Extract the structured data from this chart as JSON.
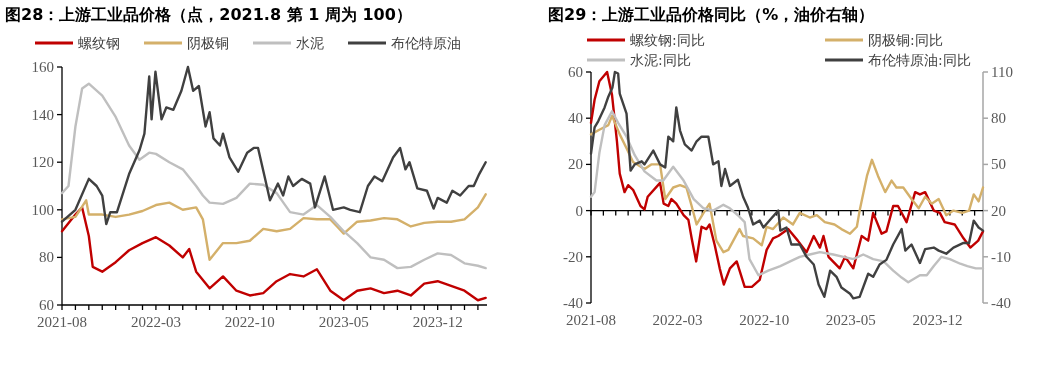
{
  "chart_data": [
    {
      "type": "line",
      "title": "图28：上游工业品价格（点，2021.8 第 1 周为 100）",
      "legend": "top",
      "xlim": [
        "2021-08-01",
        "2024-03-22"
      ],
      "xticks": [
        "2021-08",
        {
          "value": "2021-09",
          "label": null
        },
        {
          "value": "2021-10",
          "label": null
        },
        {
          "value": "2021-11",
          "label": null
        },
        {
          "value": "2021-12",
          "label": null
        },
        {
          "value": "2022-01",
          "label": null
        },
        {
          "value": "2022-02",
          "label": null
        },
        "2022-03",
        {
          "value": "2022-04",
          "label": null
        },
        {
          "value": "2022-05",
          "label": null
        },
        {
          "value": "2022-06",
          "label": null
        },
        {
          "value": "2022-07",
          "label": null
        },
        {
          "value": "2022-08",
          "label": null
        },
        {
          "value": "2022-09",
          "label": null
        },
        "2022-10",
        {
          "value": "2022-11",
          "label": null
        },
        {
          "value": "2022-12",
          "label": null
        },
        {
          "value": "2023-01",
          "label": null
        },
        {
          "value": "2023-02",
          "label": null
        },
        {
          "value": "2023-03",
          "label": null
        },
        {
          "value": "2023-04",
          "label": null
        },
        "2023-05",
        {
          "value": "2023-06",
          "label": null
        },
        {
          "value": "2023-07",
          "label": null
        },
        {
          "value": "2023-08",
          "label": null
        },
        {
          "value": "2023-09",
          "label": null
        },
        {
          "value": "2023-10",
          "label": null
        },
        {
          "value": "2023-11",
          "label": null
        },
        "2023-12",
        {
          "value": "2024-01",
          "label": null
        },
        {
          "value": "2024-02",
          "label": null
        },
        {
          "value": "2024-03",
          "label": null
        }
      ],
      "ylim": [
        60,
        160
      ],
      "yticks": [
        60,
        80,
        100,
        120,
        140,
        160
      ],
      "series": [
        {
          "name": "螺纹钢",
          "color": "#c00000",
          "x": [
            "2021-08-01",
            "2021-09-01",
            "2021-09-16",
            "2021-10-01",
            "2021-10-10",
            "2021-11-01",
            "2021-12-01",
            "2022-01-01",
            "2022-02-01",
            "2022-03-01",
            "2022-04-01",
            "2022-05-01",
            "2022-05-16",
            "2022-06-01",
            "2022-07-01",
            "2022-08-01",
            "2022-09-01",
            "2022-10-01",
            "2022-11-01",
            "2022-12-01",
            "2023-01-01",
            "2023-02-01",
            "2023-03-01",
            "2023-04-01",
            "2023-05-01",
            "2023-06-01",
            "2023-07-01",
            "2023-08-01",
            "2023-09-01",
            "2023-10-01",
            "2023-11-01",
            "2023-12-01",
            "2024-01-01",
            "2024-02-01",
            "2024-03-01",
            "2024-03-19"
          ],
          "values": [
            91,
            98,
            101,
            89,
            76,
            74,
            78,
            83,
            86,
            88.5,
            85,
            80,
            83.5,
            74,
            67,
            72,
            66,
            64,
            65,
            70,
            73,
            72,
            75,
            66,
            62,
            66,
            67,
            65,
            66,
            64,
            69,
            70,
            68,
            66,
            62,
            63
          ]
        },
        {
          "name": "阴极铜",
          "color": "#d4b06a",
          "x": [
            "2021-08-01",
            "2021-09-01",
            "2021-09-25",
            "2021-10-01",
            "2021-11-01",
            "2021-12-01",
            "2022-01-01",
            "2022-02-01",
            "2022-03-01",
            "2022-04-01",
            "2022-05-01",
            "2022-06-01",
            "2022-06-16",
            "2022-07-01",
            "2022-08-01",
            "2022-09-01",
            "2022-10-01",
            "2022-11-01",
            "2022-12-01",
            "2023-01-01",
            "2023-02-01",
            "2023-03-01",
            "2023-04-01",
            "2023-04-16",
            "2023-05-01",
            "2023-06-01",
            "2023-07-01",
            "2023-08-01",
            "2023-09-01",
            "2023-10-01",
            "2023-11-01",
            "2023-12-01",
            "2024-01-01",
            "2024-02-01",
            "2024-03-01",
            "2024-03-19"
          ],
          "values": [
            96,
            97,
            104,
            98,
            98,
            97,
            98,
            99.5,
            102,
            103,
            100,
            101,
            96,
            79,
            86,
            86,
            87,
            92,
            91,
            92,
            96.5,
            96,
            96,
            93,
            90,
            95,
            95.5,
            96.5,
            96,
            93,
            94.5,
            95,
            95,
            96,
            101,
            106.5
          ]
        },
        {
          "name": "水泥",
          "color": "#bfbfbf",
          "x": [
            "2021-08-01",
            "2021-08-16",
            "2021-09-01",
            "2021-09-16",
            "2021-10-01",
            "2021-11-01",
            "2021-12-01",
            "2022-01-01",
            "2022-01-25",
            "2022-02-15",
            "2022-03-01",
            "2022-04-01",
            "2022-05-01",
            "2022-06-01",
            "2022-06-16",
            "2022-07-01",
            "2022-08-01",
            "2022-09-01",
            "2022-10-01",
            "2022-11-01",
            "2022-12-01",
            "2023-01-01",
            "2023-02-01",
            "2023-03-01",
            "2023-04-01",
            "2023-05-01",
            "2023-06-01",
            "2023-07-01",
            "2023-08-01",
            "2023-09-01",
            "2023-10-01",
            "2023-11-01",
            "2023-12-01",
            "2024-01-01",
            "2024-02-01",
            "2024-03-01",
            "2024-03-19"
          ],
          "values": [
            107,
            110,
            135,
            151,
            153,
            148,
            139,
            127,
            121,
            124,
            123.5,
            120,
            117,
            110,
            106,
            103,
            102.5,
            105,
            111,
            110.5,
            107,
            99,
            98,
            102,
            97,
            91,
            86,
            80,
            79,
            75.5,
            76,
            79,
            81.7,
            81,
            77.5,
            76.5,
            75.5
          ]
        },
        {
          "name": "布伦特原油",
          "color": "#404040",
          "x": [
            "2021-08-01",
            "2021-09-01",
            "2021-10-01",
            "2021-10-19",
            "2021-11-01",
            "2021-11-10",
            "2021-11-19",
            "2021-12-04",
            "2022-01-01",
            "2022-01-25",
            "2022-02-05",
            "2022-02-15",
            "2022-02-20",
            "2022-02-28",
            "2022-03-14",
            "2022-03-25",
            "2022-04-10",
            "2022-04-28",
            "2022-05-13",
            "2022-05-25",
            "2022-06-07",
            "2022-06-22",
            "2022-07-01",
            "2022-07-10",
            "2022-07-25",
            "2022-08-01",
            "2022-08-16",
            "2022-09-05",
            "2022-09-25",
            "2022-10-10",
            "2022-10-20",
            "2022-11-04",
            "2022-11-16",
            "2022-12-04",
            "2022-12-16",
            "2022-12-28",
            "2023-01-08",
            "2023-01-28",
            "2023-02-15",
            "2023-02-25",
            "2023-03-19",
            "2023-04-07",
            "2023-05-01",
            "2023-05-16",
            "2023-06-07",
            "2023-06-25",
            "2023-07-10",
            "2023-07-28",
            "2023-08-22",
            "2023-09-07",
            "2023-09-19",
            "2023-09-28",
            "2023-10-16",
            "2023-11-07",
            "2023-11-22",
            "2023-12-01",
            "2023-12-22",
            "2024-01-04",
            "2024-01-22",
            "2024-02-10",
            "2024-02-21",
            "2024-03-04",
            "2024-03-19"
          ],
          "values": [
            95,
            100,
            113,
            110,
            106,
            94,
            99,
            99,
            115,
            125,
            132,
            156,
            138,
            158,
            138,
            143,
            142,
            150,
            160,
            150,
            152,
            135,
            141,
            130,
            127,
            132,
            122,
            116,
            124,
            126,
            126,
            114,
            104,
            111,
            106,
            114,
            110,
            113,
            111,
            101,
            114,
            100,
            101,
            100,
            99,
            110,
            114,
            112,
            122,
            126,
            117,
            120,
            109,
            108,
            100.5,
            105,
            103,
            108,
            106,
            110,
            110,
            115,
            120
          ]
        }
      ]
    },
    {
      "type": "line",
      "title": "图29：上游工业品价格同比（%，油价右轴）",
      "legend": "top",
      "xlim": [
        "2021-08-01",
        "2024-03-22"
      ],
      "xticks": [
        "2021-08",
        {
          "value": "2021-09",
          "label": null
        },
        {
          "value": "2021-10",
          "label": null
        },
        {
          "value": "2021-11",
          "label": null
        },
        {
          "value": "2021-12",
          "label": null
        },
        {
          "value": "2022-01",
          "label": null
        },
        {
          "value": "2022-02",
          "label": null
        },
        "2022-03",
        {
          "value": "2022-04",
          "label": null
        },
        {
          "value": "2022-05",
          "label": null
        },
        {
          "value": "2022-06",
          "label": null
        },
        {
          "value": "2022-07",
          "label": null
        },
        {
          "value": "2022-08",
          "label": null
        },
        {
          "value": "2022-09",
          "label": null
        },
        "2022-10",
        {
          "value": "2022-11",
          "label": null
        },
        {
          "value": "2022-12",
          "label": null
        },
        {
          "value": "2023-01",
          "label": null
        },
        {
          "value": "2023-02",
          "label": null
        },
        {
          "value": "2023-03",
          "label": null
        },
        {
          "value": "2023-04",
          "label": null
        },
        "2023-05",
        {
          "value": "2023-06",
          "label": null
        },
        {
          "value": "2023-07",
          "label": null
        },
        {
          "value": "2023-08",
          "label": null
        },
        {
          "value": "2023-09",
          "label": null
        },
        {
          "value": "2023-10",
          "label": null
        },
        {
          "value": "2023-11",
          "label": null
        },
        "2023-12",
        {
          "value": "2024-01",
          "label": null
        },
        {
          "value": "2024-02",
          "label": null
        },
        {
          "value": "2024-03",
          "label": null
        }
      ],
      "ylim": [
        -40,
        60
      ],
      "yticks": [
        -40,
        -20,
        0,
        20,
        40,
        60
      ],
      "y2lim": [
        -40,
        110
      ],
      "y2ticks": [
        -40,
        -10,
        20,
        50,
        80,
        110
      ],
      "series": [
        {
          "name": "螺纹钢:同比",
          "color": "#c00000",
          "x": [
            "2021-08-01",
            "2021-08-10",
            "2021-08-22",
            "2021-09-10",
            "2021-09-22",
            "2021-10-04",
            "2021-10-11",
            "2021-10-23",
            "2021-11-01",
            "2021-11-13",
            "2021-12-01",
            "2021-12-11",
            "2021-12-19",
            "2022-01-19",
            "2022-01-28",
            "2022-02-08",
            "2022-02-15",
            "2022-02-26",
            "2022-03-16",
            "2022-03-28",
            "2022-04-05",
            "2022-04-16",
            "2022-04-29",
            "2022-05-11",
            "2022-05-19",
            "2022-06-01",
            "2022-06-13",
            "2022-06-23",
            "2022-07-08",
            "2022-07-25",
            "2022-08-14",
            "2022-09-01",
            "2022-09-20",
            "2022-10-07",
            "2022-10-23",
            "2022-11-05",
            "2022-11-29",
            "2022-12-23",
            "2023-01-14",
            "2023-02-01",
            "2023-02-15",
            "2023-02-23",
            "2023-03-07",
            "2023-04-04",
            "2023-04-17",
            "2023-05-07",
            "2023-05-28",
            "2023-06-13",
            "2023-06-25",
            "2023-07-16",
            "2023-07-28",
            "2023-08-14",
            "2023-08-26",
            "2023-09-16",
            "2023-10-07",
            "2023-10-19",
            "2023-11-01",
            "2023-11-22",
            "2023-12-07",
            "2023-12-19",
            "2024-01-13",
            "2024-02-04",
            "2024-02-20",
            "2024-03-10",
            "2024-03-22"
          ],
          "values": [
            38,
            48,
            56,
            60,
            50,
            30,
            16,
            8,
            11,
            9,
            2,
            0.5,
            6,
            12,
            3,
            2,
            5,
            3,
            -2,
            -4,
            -12,
            -22,
            -7,
            -8,
            -6,
            -15,
            -25,
            -32,
            -25,
            -22,
            -33,
            -33,
            -30,
            -17,
            -12,
            -11,
            -8,
            -13,
            -18,
            -11,
            -16,
            -11,
            -20,
            -25,
            -20,
            -25,
            -11,
            -13,
            -1,
            -10,
            -9,
            2,
            2,
            -5,
            8,
            7,
            8,
            0,
            -1,
            -5,
            -6,
            -12,
            -16,
            -13,
            -9
          ]
        },
        {
          "name": "阴极铜:同比",
          "color": "#d4b06a",
          "x": [
            "2021-08-01",
            "2021-08-22",
            "2021-09-13",
            "2021-09-22",
            "2021-10-11",
            "2021-10-28",
            "2021-11-13",
            "2021-12-11",
            "2021-12-28",
            "2022-01-19",
            "2022-02-01",
            "2022-02-19",
            "2022-03-07",
            "2022-03-23",
            "2022-04-05",
            "2022-04-17",
            "2022-05-04",
            "2022-05-19",
            "2022-06-05",
            "2022-06-22",
            "2022-07-04",
            "2022-08-01",
            "2022-08-10",
            "2022-09-04",
            "2022-09-25",
            "2022-10-07",
            "2022-10-23",
            "2022-11-17",
            "2022-12-11",
            "2022-12-28",
            "2023-01-22",
            "2023-02-08",
            "2023-02-26",
            "2023-03-22",
            "2023-04-08",
            "2023-04-29",
            "2023-05-16",
            "2023-05-23",
            "2023-06-10",
            "2023-06-22",
            "2023-07-07",
            "2023-07-25",
            "2023-08-10",
            "2023-08-22",
            "2023-09-08",
            "2023-09-28",
            "2023-10-16",
            "2023-11-01",
            "2023-11-17",
            "2023-12-04",
            "2023-12-23",
            "2024-01-10",
            "2024-02-01",
            "2024-02-17",
            "2024-02-28",
            "2024-03-11",
            "2024-03-22"
          ],
          "values": [
            33,
            35,
            37,
            41,
            33,
            27,
            21,
            18,
            20,
            20,
            5,
            10,
            11,
            10,
            2,
            -6,
            -1,
            3,
            -13,
            -18,
            -17,
            -8,
            -11,
            -12,
            -15,
            -7,
            -8,
            -3,
            -6,
            -1,
            -3,
            -2,
            -5,
            -6,
            -8,
            -10,
            -7,
            0,
            15,
            22,
            15,
            8,
            13,
            10,
            10,
            5,
            1,
            6,
            3,
            5,
            -2,
            0,
            -1,
            0,
            7,
            4,
            10
          ]
        },
        {
          "name": "水泥:同比",
          "color": "#bfbfbf",
          "x": [
            "2021-08-01",
            "2021-08-10",
            "2021-08-22",
            "2021-09-04",
            "2021-09-22",
            "2021-10-07",
            "2021-10-28",
            "2021-11-17",
            "2021-12-11",
            "2022-01-10",
            "2022-01-27",
            "2022-02-19",
            "2022-03-16",
            "2022-04-10",
            "2022-05-04",
            "2022-05-28",
            "2022-06-22",
            "2022-07-08",
            "2022-07-28",
            "2022-08-14",
            "2022-08-26",
            "2022-09-17",
            "2022-10-11",
            "2022-11-10",
            "2022-12-04",
            "2022-12-28",
            "2023-01-22",
            "2023-02-15",
            "2023-03-19",
            "2023-04-13",
            "2023-05-07",
            "2023-06-01",
            "2023-06-25",
            "2023-07-21",
            "2023-08-14",
            "2023-09-04",
            "2023-09-20",
            "2023-10-19",
            "2023-11-05",
            "2023-11-22",
            "2023-12-11",
            "2024-01-01",
            "2024-01-27",
            "2024-02-13",
            "2024-03-04",
            "2024-03-22"
          ],
          "values": [
            6,
            8,
            25,
            37,
            43,
            38,
            32,
            24,
            17,
            13,
            13,
            19,
            13,
            5,
            1,
            0,
            2.5,
            1,
            -2,
            -5,
            -21,
            -28,
            -26,
            -24,
            -22,
            -20,
            -19,
            -18,
            -19,
            -20,
            -21,
            -19,
            -21,
            -22,
            -26,
            -29,
            -31,
            -28,
            -28,
            -24,
            -20,
            -21,
            -23,
            -24,
            -25,
            -25
          ]
        },
        {
          "name": "布伦特原油:同比",
          "color": "#404040",
          "axis": "y2",
          "x": [
            "2021-08-01",
            "2021-08-10",
            "2021-08-19",
            "2021-09-04",
            "2021-09-13",
            "2021-09-23",
            "2021-09-29",
            "2021-10-07",
            "2021-10-11",
            "2021-10-28",
            "2021-11-07",
            "2021-11-17",
            "2021-12-04",
            "2021-12-11",
            "2022-01-02",
            "2022-01-19",
            "2022-02-01",
            "2022-02-08",
            "2022-02-19",
            "2022-02-26",
            "2022-03-07",
            "2022-03-19",
            "2022-04-05",
            "2022-04-17",
            "2022-04-29",
            "2022-05-16",
            "2022-05-28",
            "2022-06-10",
            "2022-06-17",
            "2022-06-26",
            "2022-07-08",
            "2022-07-28",
            "2022-08-10",
            "2022-08-22",
            "2022-09-04",
            "2022-09-20",
            "2022-09-29",
            "2022-10-19",
            "2022-11-05",
            "2022-11-10",
            "2022-11-25",
            "2022-12-07",
            "2022-12-28",
            "2023-01-14",
            "2023-02-01",
            "2023-02-12",
            "2023-02-25",
            "2023-03-11",
            "2023-03-27",
            "2023-04-08",
            "2023-04-29",
            "2023-05-07",
            "2023-05-23",
            "2023-06-13",
            "2023-06-25",
            "2023-07-11",
            "2023-07-28",
            "2023-08-14",
            "2023-09-04",
            "2023-09-13",
            "2023-09-28",
            "2023-10-19",
            "2023-11-01",
            "2023-11-22",
            "2023-12-04",
            "2023-12-23",
            "2024-01-10",
            "2024-02-04",
            "2024-02-17",
            "2024-02-28",
            "2024-03-11",
            "2024-03-22"
          ],
          "values": [
            57,
            74,
            78,
            87,
            94,
            100,
            110,
            109,
            96,
            83,
            46,
            50,
            52,
            50,
            59,
            50,
            48,
            68,
            65,
            87,
            72,
            63,
            59,
            65,
            68,
            68,
            50,
            52,
            36,
            47,
            36,
            40,
            29,
            22,
            11,
            13.5,
            9,
            15,
            20,
            7,
            9,
            -2,
            -2,
            -10,
            -15,
            -28,
            -36,
            -19,
            -23,
            -30,
            -34,
            -37,
            -36,
            -21,
            -23,
            -15,
            -12,
            -2,
            8,
            -6,
            -2,
            -14,
            -5,
            -4,
            -6,
            -8,
            -4,
            -1,
            -1,
            13.5,
            9,
            7
          ]
        }
      ]
    }
  ]
}
